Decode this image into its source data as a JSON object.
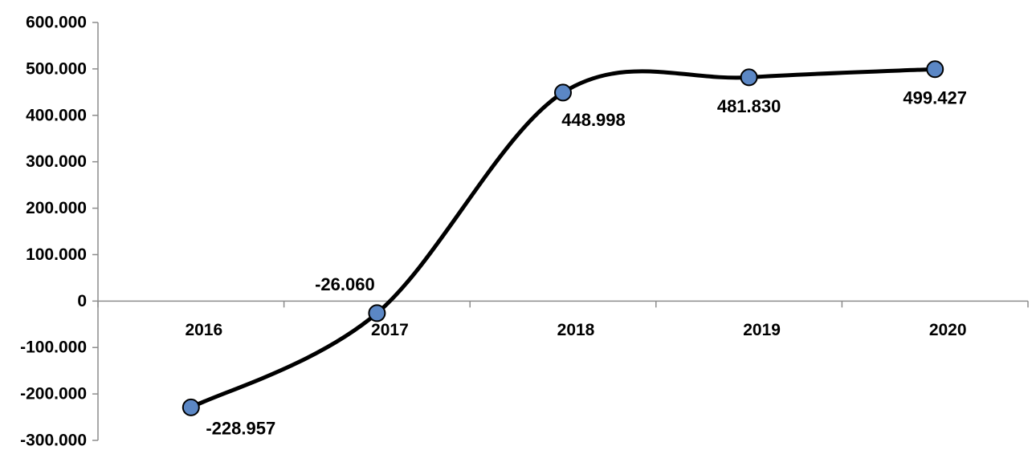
{
  "chart_data": {
    "type": "line",
    "title": "",
    "xlabel": "",
    "ylabel": "",
    "categories": [
      "2016",
      "2017",
      "2018",
      "2019",
      "2020"
    ],
    "series": [
      {
        "values": [
          -228957,
          -26060,
          448998,
          481830,
          499427
        ],
        "labels": [
          "-228.957",
          "-26.060",
          "448.998",
          "481.830",
          "499.427"
        ]
      }
    ],
    "ylim": [
      -300000,
      600000
    ],
    "yticks": [
      600000,
      500000,
      400000,
      300000,
      200000,
      100000,
      0,
      -100000,
      -200000,
      -300000
    ],
    "ytick_labels": [
      "600.000",
      "500.000",
      "400.000",
      "300.000",
      "200.000",
      "100.000",
      "0",
      "-100.000",
      "-200.000",
      "-300.000"
    ],
    "smooth": true,
    "grid": false,
    "legend": "none",
    "line_color": "#000000",
    "marker_color": "#5b87c5",
    "marker_edge_color": "#000000"
  }
}
